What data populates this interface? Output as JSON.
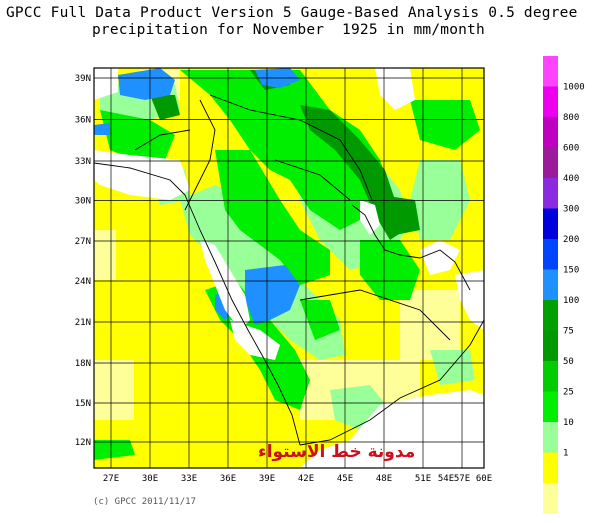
{
  "title_line1": "GPCC Full Data Product Version 5 Gauge-Based Analysis 0.5 degree",
  "title_line2": "precipitation for November  1925 in mm/month",
  "map": {
    "lon_range": [
      25,
      60
    ],
    "lat_range": [
      9,
      40
    ],
    "lat_ticks": [
      "39N",
      "36N",
      "33N",
      "30N",
      "27N",
      "24N",
      "21N",
      "18N",
      "15N",
      "12N"
    ],
    "lon_ticks": [
      "27E",
      "30E",
      "33E",
      "36E",
      "39E",
      "42E",
      "45E",
      "48E",
      "51E",
      "54E",
      "57E",
      "60E"
    ],
    "colors": {
      "lt1": "#ffff99",
      "r1": "#ffff00",
      "r10": "#99ff99",
      "r25": "#00ee00",
      "r50": "#00cc00",
      "r75": "#009900",
      "r100": "#00a000",
      "r150": "#1e90ff",
      "r200": "#0044ff",
      "r300": "#0000dd",
      "r400": "#8a2be2",
      "r600": "#9c1a9c",
      "r800": "#c000c0",
      "r1000": "#ee00ee",
      "rmax": "#ff44ff",
      "nodata": "#ffffff",
      "border": "#000000"
    }
  },
  "legend": {
    "labels": [
      "1000",
      "800",
      "600",
      "400",
      "300",
      "200",
      "150",
      "100",
      "75",
      "50",
      "25",
      "10",
      "1"
    ],
    "colors": [
      "#ff44ff",
      "#ee00ee",
      "#c000c0",
      "#9c1a9c",
      "#8a2be2",
      "#0000dd",
      "#0044ff",
      "#1e90ff",
      "#00a000",
      "#009900",
      "#00cc00",
      "#00ee00",
      "#99ff99",
      "#ffff00",
      "#ffff99"
    ]
  },
  "watermark": "مدونة خط الاستواء",
  "copyright": "(c) GPCC 2011/11/17"
}
